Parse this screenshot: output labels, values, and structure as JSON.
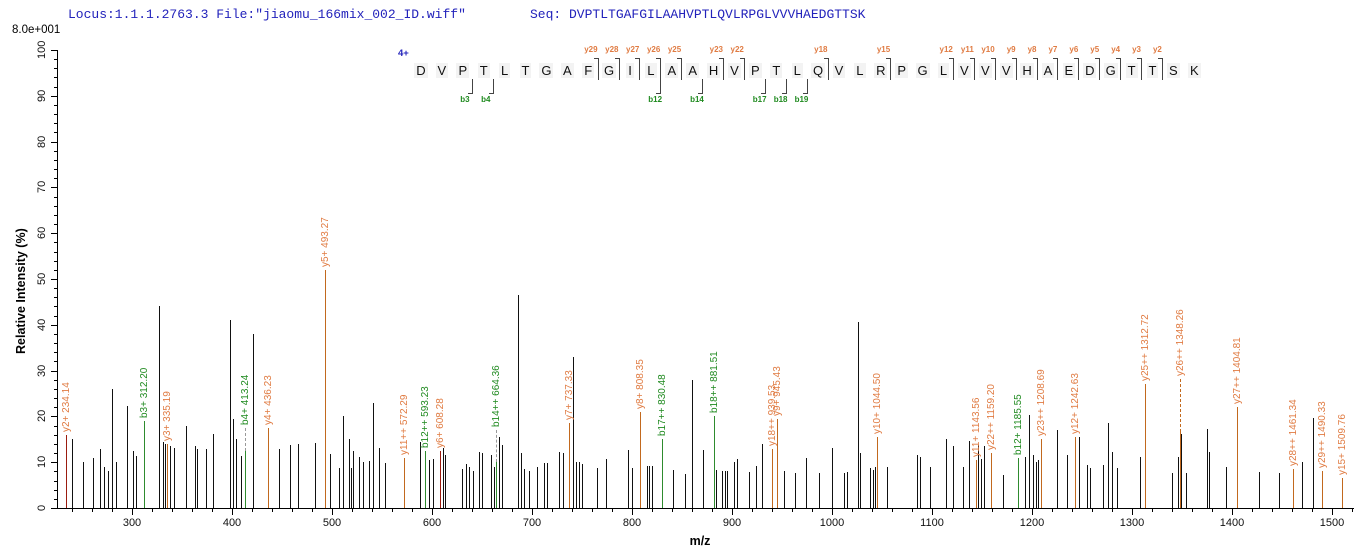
{
  "header": {
    "locus_file": "Locus:1.1.1.2763.3 File:\"jiaomu_166mix_002_ID.wiff\"",
    "seq_text": "Seq: DVPTLTGAFGILAAHVPTLQVLRPGLVVVHAEDGTTSK",
    "intensity_scale": "8.0e+001"
  },
  "axes": {
    "x_label": "m/z",
    "y_label": "Relative  Intensity  (%)",
    "x_major_ticks": [
      300,
      400,
      500,
      600,
      700,
      800,
      900,
      1000,
      1100,
      1200,
      1300,
      1400,
      1500
    ],
    "x_minor_step": 20,
    "y_major_ticks": [
      0,
      10,
      20,
      30,
      40,
      50,
      60,
      70,
      80,
      90,
      100
    ],
    "y_minor_step": 2
  },
  "sequence_overlay": {
    "charge": "4+",
    "residues": "DVPTLTGAFGILAAHVPTLQVLRPGLVVVHAEDGTTSK",
    "y_ion_marks": [
      {
        "label": "y29",
        "before_residue": 10
      },
      {
        "label": "y28",
        "before_residue": 11
      },
      {
        "label": "y27",
        "before_residue": 12
      },
      {
        "label": "y26",
        "before_residue": 13
      },
      {
        "label": "y25",
        "before_residue": 14
      },
      {
        "label": "y23",
        "before_residue": 16
      },
      {
        "label": "y22",
        "before_residue": 17
      },
      {
        "label": "y18",
        "before_residue": 21
      },
      {
        "label": "y15",
        "before_residue": 24
      },
      {
        "label": "y12",
        "before_residue": 27
      },
      {
        "label": "y11",
        "before_residue": 28
      },
      {
        "label": "y10",
        "before_residue": 29
      },
      {
        "label": "y9",
        "before_residue": 30
      },
      {
        "label": "y8",
        "before_residue": 31
      },
      {
        "label": "y7",
        "before_residue": 32
      },
      {
        "label": "y6",
        "before_residue": 33
      },
      {
        "label": "y5",
        "before_residue": 34
      },
      {
        "label": "y4",
        "before_residue": 35
      },
      {
        "label": "y3",
        "before_residue": 36
      },
      {
        "label": "y2",
        "before_residue": 37
      }
    ],
    "b_ion_marks": [
      {
        "label": "b3",
        "before_residue": 4
      },
      {
        "label": "b4",
        "before_residue": 5
      },
      {
        "label": "b12",
        "before_residue": 13
      },
      {
        "label": "b14",
        "before_residue": 15
      },
      {
        "label": "b17",
        "before_residue": 18
      },
      {
        "label": "b18",
        "before_residue": 19
      },
      {
        "label": "b19",
        "before_residue": 20
      }
    ]
  },
  "chart_data": {
    "type": "bar",
    "xlabel": "m/z",
    "ylabel": "Relative Intensity (%)",
    "xlim": [
      225,
      1520
    ],
    "ylim": [
      0,
      100
    ],
    "grid": false,
    "labeled_peaks": [
      {
        "mz": 234.14,
        "pct": 16,
        "label": "y2+ 234.14",
        "ion": "y",
        "peak_color": "darkred"
      },
      {
        "mz": 312.2,
        "pct": 19,
        "label": "b3+ 312.20",
        "ion": "b"
      },
      {
        "mz": 335.19,
        "pct": 14,
        "label": "y3+ 335.19",
        "ion": "y"
      },
      {
        "mz": 413.24,
        "pct": 12.5,
        "label": "b4+ 413.24",
        "ion": "b",
        "leader_to": 17.5,
        "leader_style": "dashed"
      },
      {
        "mz": 436.23,
        "pct": 17.5,
        "label": "y4+ 436.23",
        "ion": "y"
      },
      {
        "mz": 493.27,
        "pct": 52,
        "label": "y5+ 493.27",
        "ion": "y"
      },
      {
        "mz": 572.29,
        "pct": 11,
        "label": "y11++ 572.29",
        "ion": "y"
      },
      {
        "mz": 593.23,
        "pct": 12.5,
        "label": "b12++ 593.23",
        "ion": "b"
      },
      {
        "mz": 608.28,
        "pct": 12.5,
        "label": "y6+ 608.28",
        "ion": "y",
        "peak_color": "darkred"
      },
      {
        "mz": 664.36,
        "pct": 10,
        "label": "b14++ 664.36",
        "ion": "b",
        "leader_to": 17,
        "leader_style": "dashed"
      },
      {
        "mz": 737.33,
        "pct": 18.5,
        "label": "y7+ 737.33",
        "ion": "y"
      },
      {
        "mz": 808.35,
        "pct": 21,
        "label": "y8+ 808.35",
        "ion": "y"
      },
      {
        "mz": 830.48,
        "pct": 15,
        "label": "b17++ 830.48",
        "ion": "b"
      },
      {
        "mz": 881.51,
        "pct": 20,
        "label": "b18++ 881.51",
        "ion": "b"
      },
      {
        "mz": 939.53,
        "pct": 10.5,
        "label": "y18++ 939.53",
        "ion": "y",
        "leader_to": 13,
        "leader_style": "solid"
      },
      {
        "mz": 945.43,
        "pct": 11,
        "label": "y9+ 945.43",
        "ion": "y",
        "leader_to": 19.5,
        "leader_style": "solid"
      },
      {
        "mz": 1044.5,
        "pct": 15.5,
        "label": "y10+ 1044.50",
        "ion": "y"
      },
      {
        "mz": 1143.56,
        "pct": 10.5,
        "label": "y11+ 1143.56",
        "ion": "y"
      },
      {
        "mz": 1159.2,
        "pct": 12,
        "label": "y22++ 1159.20",
        "ion": "y"
      },
      {
        "mz": 1185.55,
        "pct": 11,
        "label": "b12+ 1185.55",
        "ion": "b"
      },
      {
        "mz": 1208.69,
        "pct": 15,
        "label": "y23++ 1208.69",
        "ion": "y"
      },
      {
        "mz": 1242.63,
        "pct": 15.5,
        "label": "y12+ 1242.63",
        "ion": "y"
      },
      {
        "mz": 1312.72,
        "pct": 27,
        "label": "y25++ 1312.72",
        "ion": "y"
      },
      {
        "mz": 1348.26,
        "pct": 16.5,
        "label": "y26++ 1348.26",
        "ion": "y",
        "leader_to": 28,
        "leader_style": "dashed"
      },
      {
        "mz": 1404.81,
        "pct": 22,
        "label": "y27++ 1404.81",
        "ion": "y"
      },
      {
        "mz": 1461.34,
        "pct": 8.5,
        "label": "y28++ 1461.34",
        "ion": "y"
      },
      {
        "mz": 1490.33,
        "pct": 8,
        "label": "y29++ 1490.33",
        "ion": "y"
      },
      {
        "mz": 1509.76,
        "pct": 6.5,
        "label": "y15+ 1509.76",
        "ion": "y"
      }
    ],
    "unlabeled_peaks": [
      [
        240,
        15
      ],
      [
        251,
        10
      ],
      [
        261,
        11
      ],
      [
        268,
        12.8
      ],
      [
        272,
        9
      ],
      [
        276,
        8
      ],
      [
        280,
        26
      ],
      [
        284,
        10
      ],
      [
        295,
        22.3
      ],
      [
        301,
        12.5
      ],
      [
        304,
        11.4
      ],
      [
        327,
        44
      ],
      [
        331,
        14.5
      ],
      [
        333,
        14
      ],
      [
        338,
        13.5
      ],
      [
        342,
        13.2
      ],
      [
        354,
        17.9
      ],
      [
        363,
        13.5
      ],
      [
        365,
        12.8
      ],
      [
        374,
        12.8
      ],
      [
        381,
        16.2
      ],
      [
        398,
        41
      ],
      [
        401,
        19.5
      ],
      [
        404,
        15
      ],
      [
        409,
        11.4
      ],
      [
        421,
        37.9
      ],
      [
        447,
        12.8
      ],
      [
        458,
        13.8
      ],
      [
        466,
        14
      ],
      [
        483,
        14.1
      ],
      [
        498,
        11.8
      ],
      [
        507,
        8.7
      ],
      [
        511,
        20
      ],
      [
        517,
        15
      ],
      [
        519,
        8.7
      ],
      [
        521,
        12.4
      ],
      [
        527,
        11.2
      ],
      [
        531,
        10.1
      ],
      [
        537,
        10.3
      ],
      [
        541,
        23
      ],
      [
        547,
        13
      ],
      [
        553,
        9.8
      ],
      [
        588,
        14.5
      ],
      [
        597,
        10.5
      ],
      [
        601,
        10.8
      ],
      [
        611,
        13
      ],
      [
        613,
        11.6
      ],
      [
        630,
        8.5
      ],
      [
        634,
        9.5
      ],
      [
        637,
        9
      ],
      [
        641,
        8
      ],
      [
        647,
        12.2
      ],
      [
        650,
        12
      ],
      [
        659,
        11.5
      ],
      [
        662,
        9
      ],
      [
        667,
        15.5
      ],
      [
        670,
        13.8
      ],
      [
        686,
        46.5
      ],
      [
        689,
        12
      ],
      [
        692,
        8.5
      ],
      [
        697,
        8
      ],
      [
        705,
        9
      ],
      [
        712,
        9.8
      ],
      [
        715,
        9.8
      ],
      [
        727,
        12.3
      ],
      [
        731,
        11.9
      ],
      [
        741,
        33
      ],
      [
        744,
        10.1
      ],
      [
        747,
        10
      ],
      [
        750,
        9.5
      ],
      [
        765,
        8.7
      ],
      [
        774,
        10.6
      ],
      [
        796,
        12.7
      ],
      [
        800,
        8.7
      ],
      [
        815,
        9.2
      ],
      [
        817,
        9.2
      ],
      [
        820,
        9.2
      ],
      [
        841,
        8.4
      ],
      [
        853,
        7.4
      ],
      [
        860,
        28
      ],
      [
        871,
        12.7
      ],
      [
        884,
        8.3
      ],
      [
        890,
        8
      ],
      [
        893,
        8
      ],
      [
        895,
        8
      ],
      [
        902,
        10.1
      ],
      [
        905,
        10.6
      ],
      [
        917,
        7.9
      ],
      [
        924,
        9.2
      ],
      [
        930,
        14
      ],
      [
        952,
        8
      ],
      [
        963,
        7.6
      ],
      [
        974,
        11
      ],
      [
        987,
        7.7
      ],
      [
        1000,
        13
      ],
      [
        1012,
        7.7
      ],
      [
        1015,
        7.9
      ],
      [
        1026,
        40.7
      ],
      [
        1028,
        12
      ],
      [
        1038,
        8.7
      ],
      [
        1041,
        8.3
      ],
      [
        1043,
        8.9
      ],
      [
        1055,
        8.9
      ],
      [
        1085,
        11.6
      ],
      [
        1088,
        11.2
      ],
      [
        1098,
        9
      ],
      [
        1114,
        15
      ],
      [
        1121,
        13.5
      ],
      [
        1131,
        9
      ],
      [
        1137,
        14.6
      ],
      [
        1146,
        13.8
      ],
      [
        1149,
        10.8
      ],
      [
        1152,
        13.5
      ],
      [
        1171,
        7.2
      ],
      [
        1193,
        11.2
      ],
      [
        1197,
        20.3
      ],
      [
        1201,
        11.6
      ],
      [
        1204,
        10.1
      ],
      [
        1206,
        10.5
      ],
      [
        1225,
        17
      ],
      [
        1235,
        11.6
      ],
      [
        1247,
        15.6
      ],
      [
        1255,
        9.4
      ],
      [
        1258,
        8.7
      ],
      [
        1271,
        9.4
      ],
      [
        1276,
        18.5
      ],
      [
        1280,
        12.3
      ],
      [
        1285,
        8.7
      ],
      [
        1308,
        11.2
      ],
      [
        1340,
        7.7
      ],
      [
        1346,
        11.2
      ],
      [
        1349,
        16.2
      ],
      [
        1354,
        7.6
      ],
      [
        1375,
        17.2
      ],
      [
        1377,
        12.3
      ],
      [
        1394,
        8.9
      ],
      [
        1427,
        7.9
      ],
      [
        1447,
        7.7
      ],
      [
        1470,
        10.1
      ],
      [
        1481,
        19.6
      ]
    ]
  },
  "colors": {
    "header_text": "#2222bb",
    "y_ion": "#e07b42",
    "y_peak": "#c2691e",
    "b_ion": "#1f8a1f",
    "b_peak": "#2e8b2e",
    "dark_red_peak": "#9b1c0f",
    "peak_black": "#111111"
  }
}
